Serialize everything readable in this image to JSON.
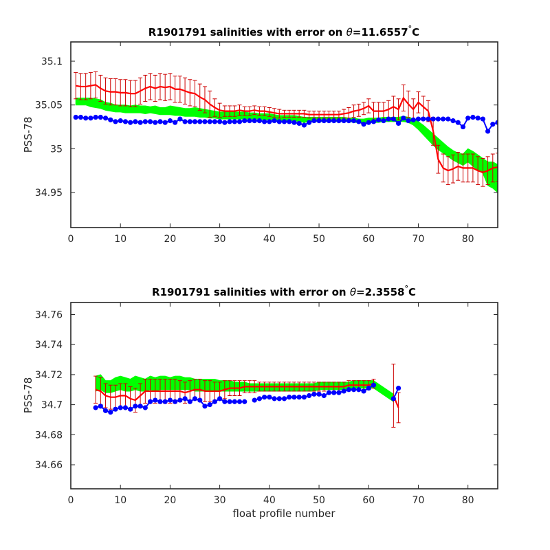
{
  "colors": {
    "obs": "#0000ff",
    "mapped": "#ff0000",
    "error_bar": "#cc0000",
    "climatology": "#00ff00",
    "axes": "#262626"
  },
  "chart_data": [
    {
      "type": "line",
      "title_prefix": "R1901791 salinities with error on ",
      "theta_symbol": "θ",
      "theta_value": "=11.6557",
      "degree": "°",
      "unit": "C",
      "xlabel": "",
      "ylabel": "PSS-78",
      "xlim": [
        0,
        86
      ],
      "ylim": [
        34.91,
        35.122
      ],
      "xticks": [
        0,
        10,
        20,
        30,
        40,
        50,
        60,
        70,
        80
      ],
      "xtick_labels": [
        "0",
        "10",
        "20",
        "30",
        "40",
        "50",
        "60",
        "70",
        "80"
      ],
      "yticks": [
        34.95,
        35,
        35.05,
        35.1
      ],
      "ytick_labels": [
        "34.95",
        "35",
        "35.05",
        "35.1"
      ],
      "x": [
        1,
        2,
        3,
        4,
        5,
        6,
        7,
        8,
        9,
        10,
        11,
        12,
        13,
        14,
        15,
        16,
        17,
        18,
        19,
        20,
        21,
        22,
        23,
        24,
        25,
        26,
        27,
        28,
        29,
        30,
        31,
        32,
        33,
        34,
        35,
        36,
        37,
        38,
        39,
        40,
        41,
        42,
        43,
        44,
        45,
        46,
        47,
        48,
        49,
        50,
        51,
        52,
        53,
        54,
        55,
        56,
        57,
        58,
        59,
        60,
        61,
        62,
        63,
        64,
        65,
        66,
        67,
        68,
        69,
        70,
        71,
        72,
        73,
        74,
        75,
        76,
        77,
        78,
        79,
        80,
        81,
        82,
        83,
        84,
        85,
        86
      ],
      "observed": [
        35.036,
        35.036,
        35.035,
        35.035,
        35.036,
        35.036,
        35.035,
        35.033,
        35.031,
        35.032,
        35.031,
        35.03,
        35.031,
        35.03,
        35.031,
        35.031,
        35.03,
        35.031,
        35.03,
        35.032,
        35.03,
        35.034,
        35.031,
        35.031,
        35.031,
        35.031,
        35.031,
        35.031,
        35.031,
        35.031,
        35.03,
        35.031,
        35.031,
        35.031,
        35.032,
        35.032,
        35.032,
        35.032,
        35.031,
        35.031,
        35.032,
        35.031,
        35.031,
        35.031,
        35.03,
        35.029,
        35.027,
        35.03,
        35.032,
        35.032,
        35.032,
        35.032,
        35.032,
        35.032,
        35.032,
        35.032,
        35.032,
        35.031,
        35.028,
        35.03,
        35.031,
        35.033,
        35.032,
        35.034,
        35.034,
        35.029,
        35.035,
        35.032,
        35.033,
        35.034,
        35.034,
        35.034,
        35.034,
        35.034,
        35.034,
        35.034,
        35.032,
        35.03,
        35.025,
        35.035,
        35.036,
        35.035,
        35.034,
        35.02,
        35.028,
        35.03
      ],
      "mapped": [
        35.072,
        35.071,
        35.071,
        35.072,
        35.073,
        35.069,
        35.066,
        35.065,
        35.065,
        35.064,
        35.064,
        35.063,
        35.063,
        35.066,
        35.069,
        35.071,
        35.069,
        35.071,
        35.07,
        35.071,
        35.068,
        35.068,
        35.066,
        35.064,
        35.063,
        35.059,
        35.056,
        35.051,
        35.047,
        35.044,
        35.043,
        35.043,
        35.043,
        35.044,
        35.043,
        35.043,
        35.044,
        35.043,
        35.043,
        35.042,
        35.041,
        35.04,
        35.04,
        35.04,
        35.04,
        35.04,
        35.04,
        35.039,
        35.039,
        35.039,
        35.039,
        35.039,
        35.039,
        35.039,
        35.04,
        35.041,
        35.043,
        35.044,
        35.046,
        35.049,
        35.043,
        35.043,
        35.043,
        35.045,
        35.048,
        35.045,
        35.058,
        35.051,
        35.045,
        35.053,
        35.048,
        35.043,
        35.02,
        34.988,
        34.978,
        34.975,
        34.977,
        34.98,
        34.978,
        34.978,
        34.978,
        34.975,
        34.973,
        34.975,
        34.978,
        34.979
      ],
      "mapped_err": [
        0.015,
        0.015,
        0.015,
        0.015,
        0.015,
        0.015,
        0.015,
        0.015,
        0.015,
        0.015,
        0.015,
        0.015,
        0.015,
        0.015,
        0.015,
        0.015,
        0.015,
        0.015,
        0.015,
        0.015,
        0.015,
        0.015,
        0.015,
        0.015,
        0.015,
        0.015,
        0.015,
        0.015,
        0.01,
        0.008,
        0.006,
        0.006,
        0.006,
        0.006,
        0.005,
        0.005,
        0.005,
        0.005,
        0.005,
        0.005,
        0.005,
        0.005,
        0.004,
        0.004,
        0.004,
        0.004,
        0.004,
        0.004,
        0.004,
        0.004,
        0.004,
        0.004,
        0.004,
        0.004,
        0.005,
        0.006,
        0.007,
        0.007,
        0.007,
        0.008,
        0.01,
        0.01,
        0.01,
        0.01,
        0.012,
        0.012,
        0.015,
        0.015,
        0.012,
        0.012,
        0.012,
        0.012,
        0.016,
        0.016,
        0.016,
        0.016,
        0.016,
        0.016,
        0.016,
        0.016,
        0.016,
        0.016,
        0.016,
        0.016,
        0.016,
        0.016
      ],
      "climatology_upper": [
        35.058,
        35.058,
        35.058,
        35.058,
        35.057,
        35.056,
        35.053,
        35.052,
        35.05,
        35.05,
        35.05,
        35.049,
        35.05,
        35.049,
        35.049,
        35.048,
        35.049,
        35.047,
        35.047,
        35.049,
        35.048,
        35.047,
        35.046,
        35.046,
        35.047,
        35.046,
        35.045,
        35.044,
        35.043,
        35.042,
        35.042,
        35.042,
        35.042,
        35.042,
        35.042,
        35.041,
        35.041,
        35.04,
        35.04,
        35.04,
        35.039,
        35.038,
        35.038,
        35.038,
        35.038,
        35.037,
        35.036,
        35.036,
        35.036,
        35.036,
        35.036,
        35.036,
        35.036,
        35.036,
        35.036,
        35.035,
        35.035,
        35.034,
        35.034,
        35.035,
        35.035,
        35.035,
        35.036,
        35.036,
        35.036,
        35.036,
        35.037,
        35.036,
        35.034,
        35.031,
        35.027,
        35.022,
        35.017,
        35.012,
        35.007,
        35.002,
        34.998,
        34.995,
        34.994,
        35.0,
        34.997,
        34.993,
        34.989,
        34.985,
        34.985,
        34.982
      ],
      "climatology_lower": [
        35.05,
        35.05,
        35.05,
        35.048,
        35.047,
        35.046,
        35.044,
        35.043,
        35.042,
        35.042,
        35.041,
        35.041,
        35.041,
        35.041,
        35.04,
        35.041,
        35.04,
        35.039,
        35.039,
        35.039,
        35.038,
        35.038,
        35.037,
        35.037,
        35.037,
        35.036,
        35.036,
        35.035,
        35.035,
        35.034,
        35.034,
        35.034,
        35.034,
        35.034,
        35.034,
        35.034,
        35.034,
        35.034,
        35.033,
        35.033,
        35.033,
        35.032,
        35.032,
        35.032,
        35.032,
        35.031,
        35.03,
        35.031,
        35.031,
        35.031,
        35.031,
        35.031,
        35.031,
        35.031,
        35.031,
        35.031,
        35.03,
        35.03,
        35.03,
        35.03,
        35.03,
        35.03,
        35.031,
        35.031,
        35.031,
        35.031,
        35.031,
        35.03,
        35.027,
        35.022,
        35.016,
        35.01,
        35.004,
        34.999,
        34.995,
        34.991,
        34.987,
        34.984,
        34.981,
        34.985,
        34.98,
        34.976,
        34.972,
        34.958,
        34.955,
        34.95
      ]
    },
    {
      "type": "line",
      "title_prefix": "R1901791 salinities with error on ",
      "theta_symbol": "θ",
      "theta_value": "=2.3558",
      "degree": "°",
      "unit": "C",
      "xlabel": "float profile number",
      "ylabel": "PSS-78",
      "xlim": [
        0,
        86
      ],
      "ylim": [
        34.644,
        34.768
      ],
      "xticks": [
        0,
        10,
        20,
        30,
        40,
        50,
        60,
        70,
        80
      ],
      "xtick_labels": [
        "0",
        "10",
        "20",
        "30",
        "40",
        "50",
        "60",
        "70",
        "80"
      ],
      "yticks": [
        34.66,
        34.68,
        34.7,
        34.72,
        34.74,
        34.76
      ],
      "ytick_labels": [
        "34.66",
        "34.68",
        "34.7",
        "34.72",
        "34.74",
        "34.76"
      ],
      "x": [
        5,
        6,
        7,
        8,
        9,
        10,
        11,
        12,
        13,
        14,
        15,
        16,
        17,
        18,
        19,
        20,
        21,
        22,
        23,
        24,
        25,
        26,
        27,
        28,
        29,
        30,
        31,
        32,
        33,
        34,
        35,
        36,
        37,
        38,
        39,
        40,
        41,
        42,
        43,
        44,
        45,
        46,
        47,
        48,
        49,
        50,
        51,
        52,
        53,
        54,
        55,
        56,
        57,
        58,
        59,
        60,
        61,
        62,
        63,
        64,
        65,
        66
      ],
      "observed": [
        34.698,
        34.699,
        34.696,
        34.695,
        34.697,
        34.698,
        34.698,
        34.697,
        34.699,
        34.699,
        34.698,
        34.702,
        34.703,
        34.702,
        34.702,
        34.703,
        34.702,
        34.703,
        34.704,
        34.702,
        34.704,
        34.703,
        34.699,
        34.7,
        34.702,
        34.704,
        34.702,
        34.702,
        34.702,
        34.702,
        34.702,
        null,
        34.703,
        34.704,
        34.705,
        34.705,
        34.704,
        34.704,
        34.704,
        34.705,
        34.705,
        34.705,
        34.705,
        34.706,
        34.707,
        34.707,
        34.706,
        34.708,
        34.708,
        34.708,
        34.709,
        34.71,
        34.71,
        34.71,
        34.709,
        34.711,
        34.713,
        null,
        null,
        null,
        34.704,
        34.711
      ],
      "mapped": [
        34.71,
        34.709,
        34.706,
        34.705,
        34.705,
        34.706,
        34.706,
        34.704,
        34.703,
        34.706,
        34.709,
        34.709,
        34.709,
        34.709,
        34.709,
        34.709,
        34.709,
        34.709,
        34.708,
        34.709,
        34.71,
        34.71,
        34.709,
        34.709,
        34.709,
        34.709,
        34.71,
        34.711,
        34.711,
        34.711,
        34.712,
        34.712,
        34.712,
        34.712,
        34.712,
        34.712,
        34.712,
        34.712,
        34.712,
        34.712,
        34.712,
        34.712,
        34.712,
        34.712,
        34.712,
        34.712,
        34.712,
        34.712,
        34.712,
        34.712,
        34.712,
        34.713,
        34.713,
        34.713,
        34.713,
        34.713,
        34.714,
        null,
        null,
        null,
        34.706,
        34.698
      ],
      "mapped_err": [
        0.009,
        0.009,
        0.008,
        0.008,
        0.008,
        0.008,
        0.008,
        0.008,
        0.008,
        0.008,
        0.008,
        0.008,
        0.008,
        0.008,
        0.008,
        0.008,
        0.008,
        0.007,
        0.007,
        0.007,
        0.007,
        0.007,
        0.007,
        0.007,
        0.006,
        0.006,
        0.006,
        0.005,
        0.005,
        0.005,
        0.004,
        0.004,
        0.004,
        0.003,
        0.003,
        0.003,
        0.003,
        0.003,
        0.003,
        0.003,
        0.003,
        0.003,
        0.003,
        0.003,
        0.003,
        0.003,
        0.003,
        0.003,
        0.003,
        0.003,
        0.003,
        0.003,
        0.003,
        0.003,
        0.003,
        0.003,
        0.003,
        null,
        null,
        null,
        0.021,
        0.01
      ],
      "climatology_upper": [
        34.719,
        34.72,
        34.716,
        34.716,
        34.718,
        34.719,
        34.718,
        34.717,
        34.719,
        34.718,
        34.717,
        34.719,
        34.718,
        34.719,
        34.719,
        34.718,
        34.719,
        34.719,
        34.718,
        34.718,
        34.717,
        34.717,
        34.717,
        34.717,
        34.717,
        34.716,
        34.716,
        34.716,
        34.715,
        34.715,
        34.715,
        34.714,
        34.714,
        34.714,
        34.714,
        34.714,
        34.714,
        34.714,
        34.714,
        34.714,
        34.714,
        34.714,
        34.714,
        34.714,
        34.714,
        34.715,
        34.715,
        34.715,
        34.715,
        34.715,
        34.715,
        34.715,
        34.716,
        34.716,
        34.716,
        34.716,
        34.716,
        null,
        null,
        null,
        null,
        null
      ],
      "climatology_lower": [
        34.709,
        34.71,
        34.708,
        34.708,
        34.709,
        34.71,
        34.709,
        34.709,
        34.71,
        34.709,
        34.709,
        34.71,
        34.709,
        34.71,
        34.71,
        34.71,
        34.71,
        34.71,
        34.71,
        34.71,
        34.709,
        34.709,
        34.709,
        34.709,
        34.709,
        34.709,
        34.709,
        34.709,
        34.709,
        34.709,
        34.709,
        34.709,
        34.709,
        34.709,
        34.709,
        34.709,
        34.709,
        34.709,
        34.709,
        34.709,
        34.709,
        34.709,
        34.709,
        34.709,
        34.709,
        34.71,
        34.71,
        34.71,
        34.71,
        34.71,
        34.71,
        34.71,
        34.711,
        34.711,
        34.711,
        34.711,
        34.711,
        null,
        null,
        null,
        null,
        null
      ],
      "climatology_tail": {
        "x": [
          61,
          65
        ],
        "upper": [
          34.716,
          34.707
        ],
        "lower": [
          34.711,
          34.702
        ]
      }
    }
  ]
}
